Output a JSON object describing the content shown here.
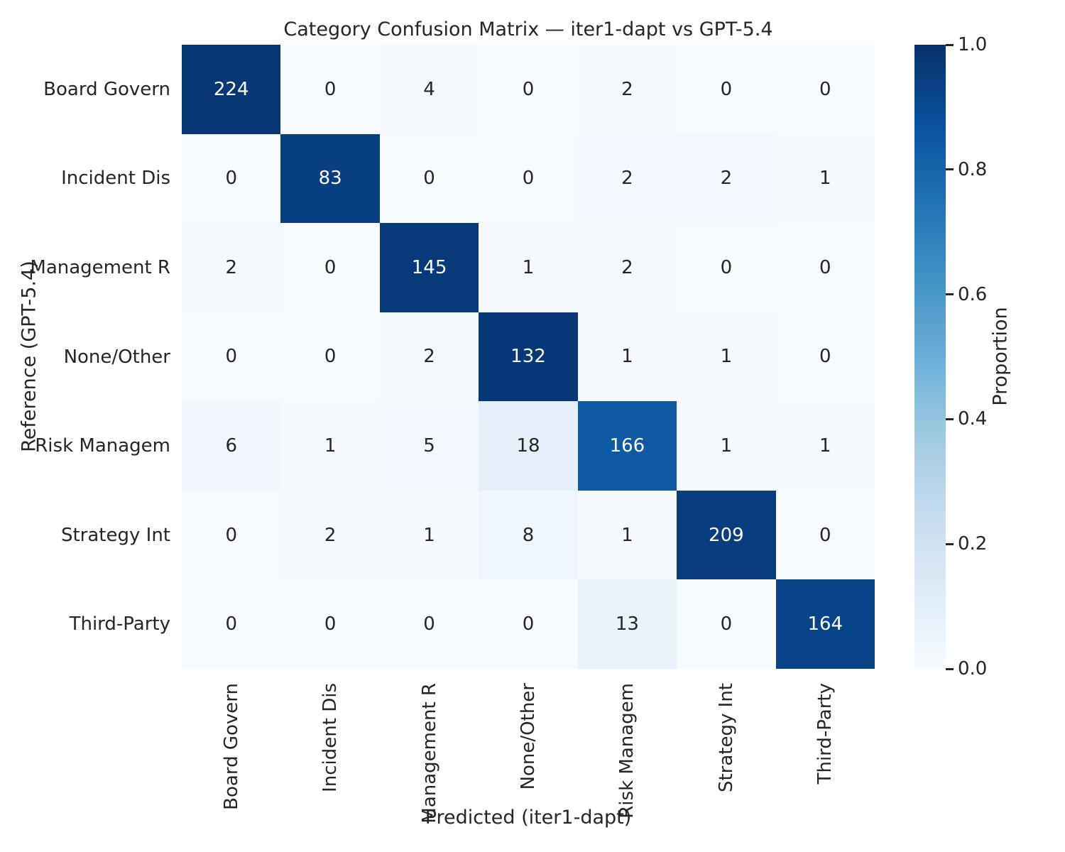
{
  "chart_data": {
    "type": "heatmap",
    "title": "Category Confusion Matrix — iter1-dapt vs GPT-5.4",
    "xlabel": "Predicted (iter1-dapt)",
    "ylabel": "Reference (GPT-5.4)",
    "x_categories": [
      "Board Govern",
      "Incident Dis",
      "Management R",
      "None/Other",
      "Risk Managem",
      "Strategy Int",
      "Third-Party"
    ],
    "y_categories": [
      "Board Govern",
      "Incident Dis",
      "Management R",
      "None/Other",
      "Risk Managem",
      "Strategy Int",
      "Third-Party"
    ],
    "matrix": [
      [
        224,
        0,
        4,
        0,
        2,
        0,
        0
      ],
      [
        0,
        83,
        0,
        0,
        2,
        2,
        1
      ],
      [
        2,
        0,
        145,
        1,
        2,
        0,
        0
      ],
      [
        0,
        0,
        2,
        132,
        1,
        1,
        0
      ],
      [
        6,
        1,
        5,
        18,
        166,
        1,
        1
      ],
      [
        0,
        2,
        1,
        8,
        1,
        209,
        0
      ],
      [
        0,
        0,
        0,
        0,
        13,
        0,
        164
      ]
    ],
    "normalization": "row",
    "grid": false,
    "colorbar": {
      "label": "Proportion",
      "tick_labels": [
        "1.0",
        "0.8",
        "0.6",
        "0.4",
        "0.2",
        "0.0"
      ],
      "tick_values": [
        1.0,
        0.8,
        0.6,
        0.4,
        0.2,
        0.0
      ],
      "range": [
        0.0,
        1.0
      ],
      "position": "right"
    },
    "colormap": {
      "name": "Blues",
      "stops": [
        [
          0.0,
          "#f7fbff"
        ],
        [
          0.125,
          "#deebf7"
        ],
        [
          0.25,
          "#c6dbef"
        ],
        [
          0.375,
          "#9ecae1"
        ],
        [
          0.5,
          "#6baed6"
        ],
        [
          0.625,
          "#4292c6"
        ],
        [
          0.75,
          "#2171b5"
        ],
        [
          0.875,
          "#08519c"
        ],
        [
          1.0,
          "#08306b"
        ]
      ]
    },
    "colors": {
      "annotation_dark_text": "#262626",
      "annotation_light_text": "#ffffff",
      "background": "#ffffff"
    }
  }
}
